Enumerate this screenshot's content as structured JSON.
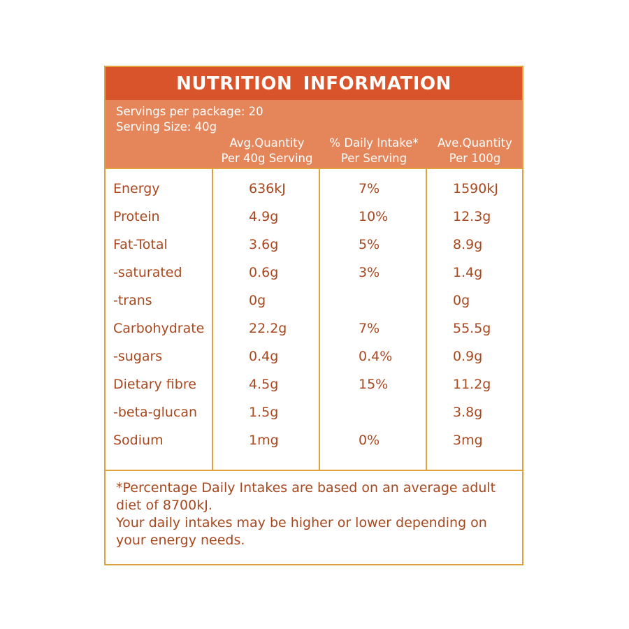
{
  "label": {
    "title": "NUTRITION  INFORMATION",
    "servings_per_package": "Servings per package: 20",
    "serving_size": "Serving Size: 40g",
    "columns": [
      {
        "line1": "Avg.Quantity",
        "line2": "Per 40g Serving"
      },
      {
        "line1": "% Daily Intake*",
        "line2": "Per Serving"
      },
      {
        "line1": "Ave.Quantity",
        "line2": "Per 100g"
      }
    ],
    "rows": [
      {
        "nutrient": "Energy",
        "per_serving": "636kJ",
        "daily_intake": "7%",
        "per_100g": "1590kJ"
      },
      {
        "nutrient": "Protein",
        "per_serving": "4.9g",
        "daily_intake": "10%",
        "per_100g": "12.3g"
      },
      {
        "nutrient": "Fat-Total",
        "per_serving": "3.6g",
        "daily_intake": "5%",
        "per_100g": "8.9g"
      },
      {
        "nutrient": " -saturated",
        "per_serving": "0.6g",
        "daily_intake": "3%",
        "per_100g": "1.4g"
      },
      {
        "nutrient": " -trans",
        "per_serving": "0g",
        "daily_intake": "",
        "per_100g": "0g"
      },
      {
        "nutrient": "Carbohydrate",
        "per_serving": "22.2g",
        "daily_intake": "7%",
        "per_100g": "55.5g"
      },
      {
        "nutrient": " -sugars",
        "per_serving": "0.4g",
        "daily_intake": "0.4%",
        "per_100g": "0.9g"
      },
      {
        "nutrient": "Dietary fibre",
        "per_serving": "4.5g",
        "daily_intake": "15%",
        "per_100g": "11.2g"
      },
      {
        "nutrient": " -beta-glucan",
        "per_serving": "1.5g",
        "daily_intake": "",
        "per_100g": "3.8g"
      },
      {
        "nutrient": "Sodium",
        "per_serving": "1mg",
        "daily_intake": "0%",
        "per_100g": "3mg"
      }
    ],
    "footnote_line1": "*Percentage Daily Intakes are based on an average adult diet of 8700kJ.",
    "footnote_line2": "Your daily intakes may be higher or lower depending on your energy needs."
  },
  "colors": {
    "title_bg": "#d9542a",
    "header_bg": "#e5855a",
    "border": "#e0a23a",
    "text": "#a8481f"
  }
}
